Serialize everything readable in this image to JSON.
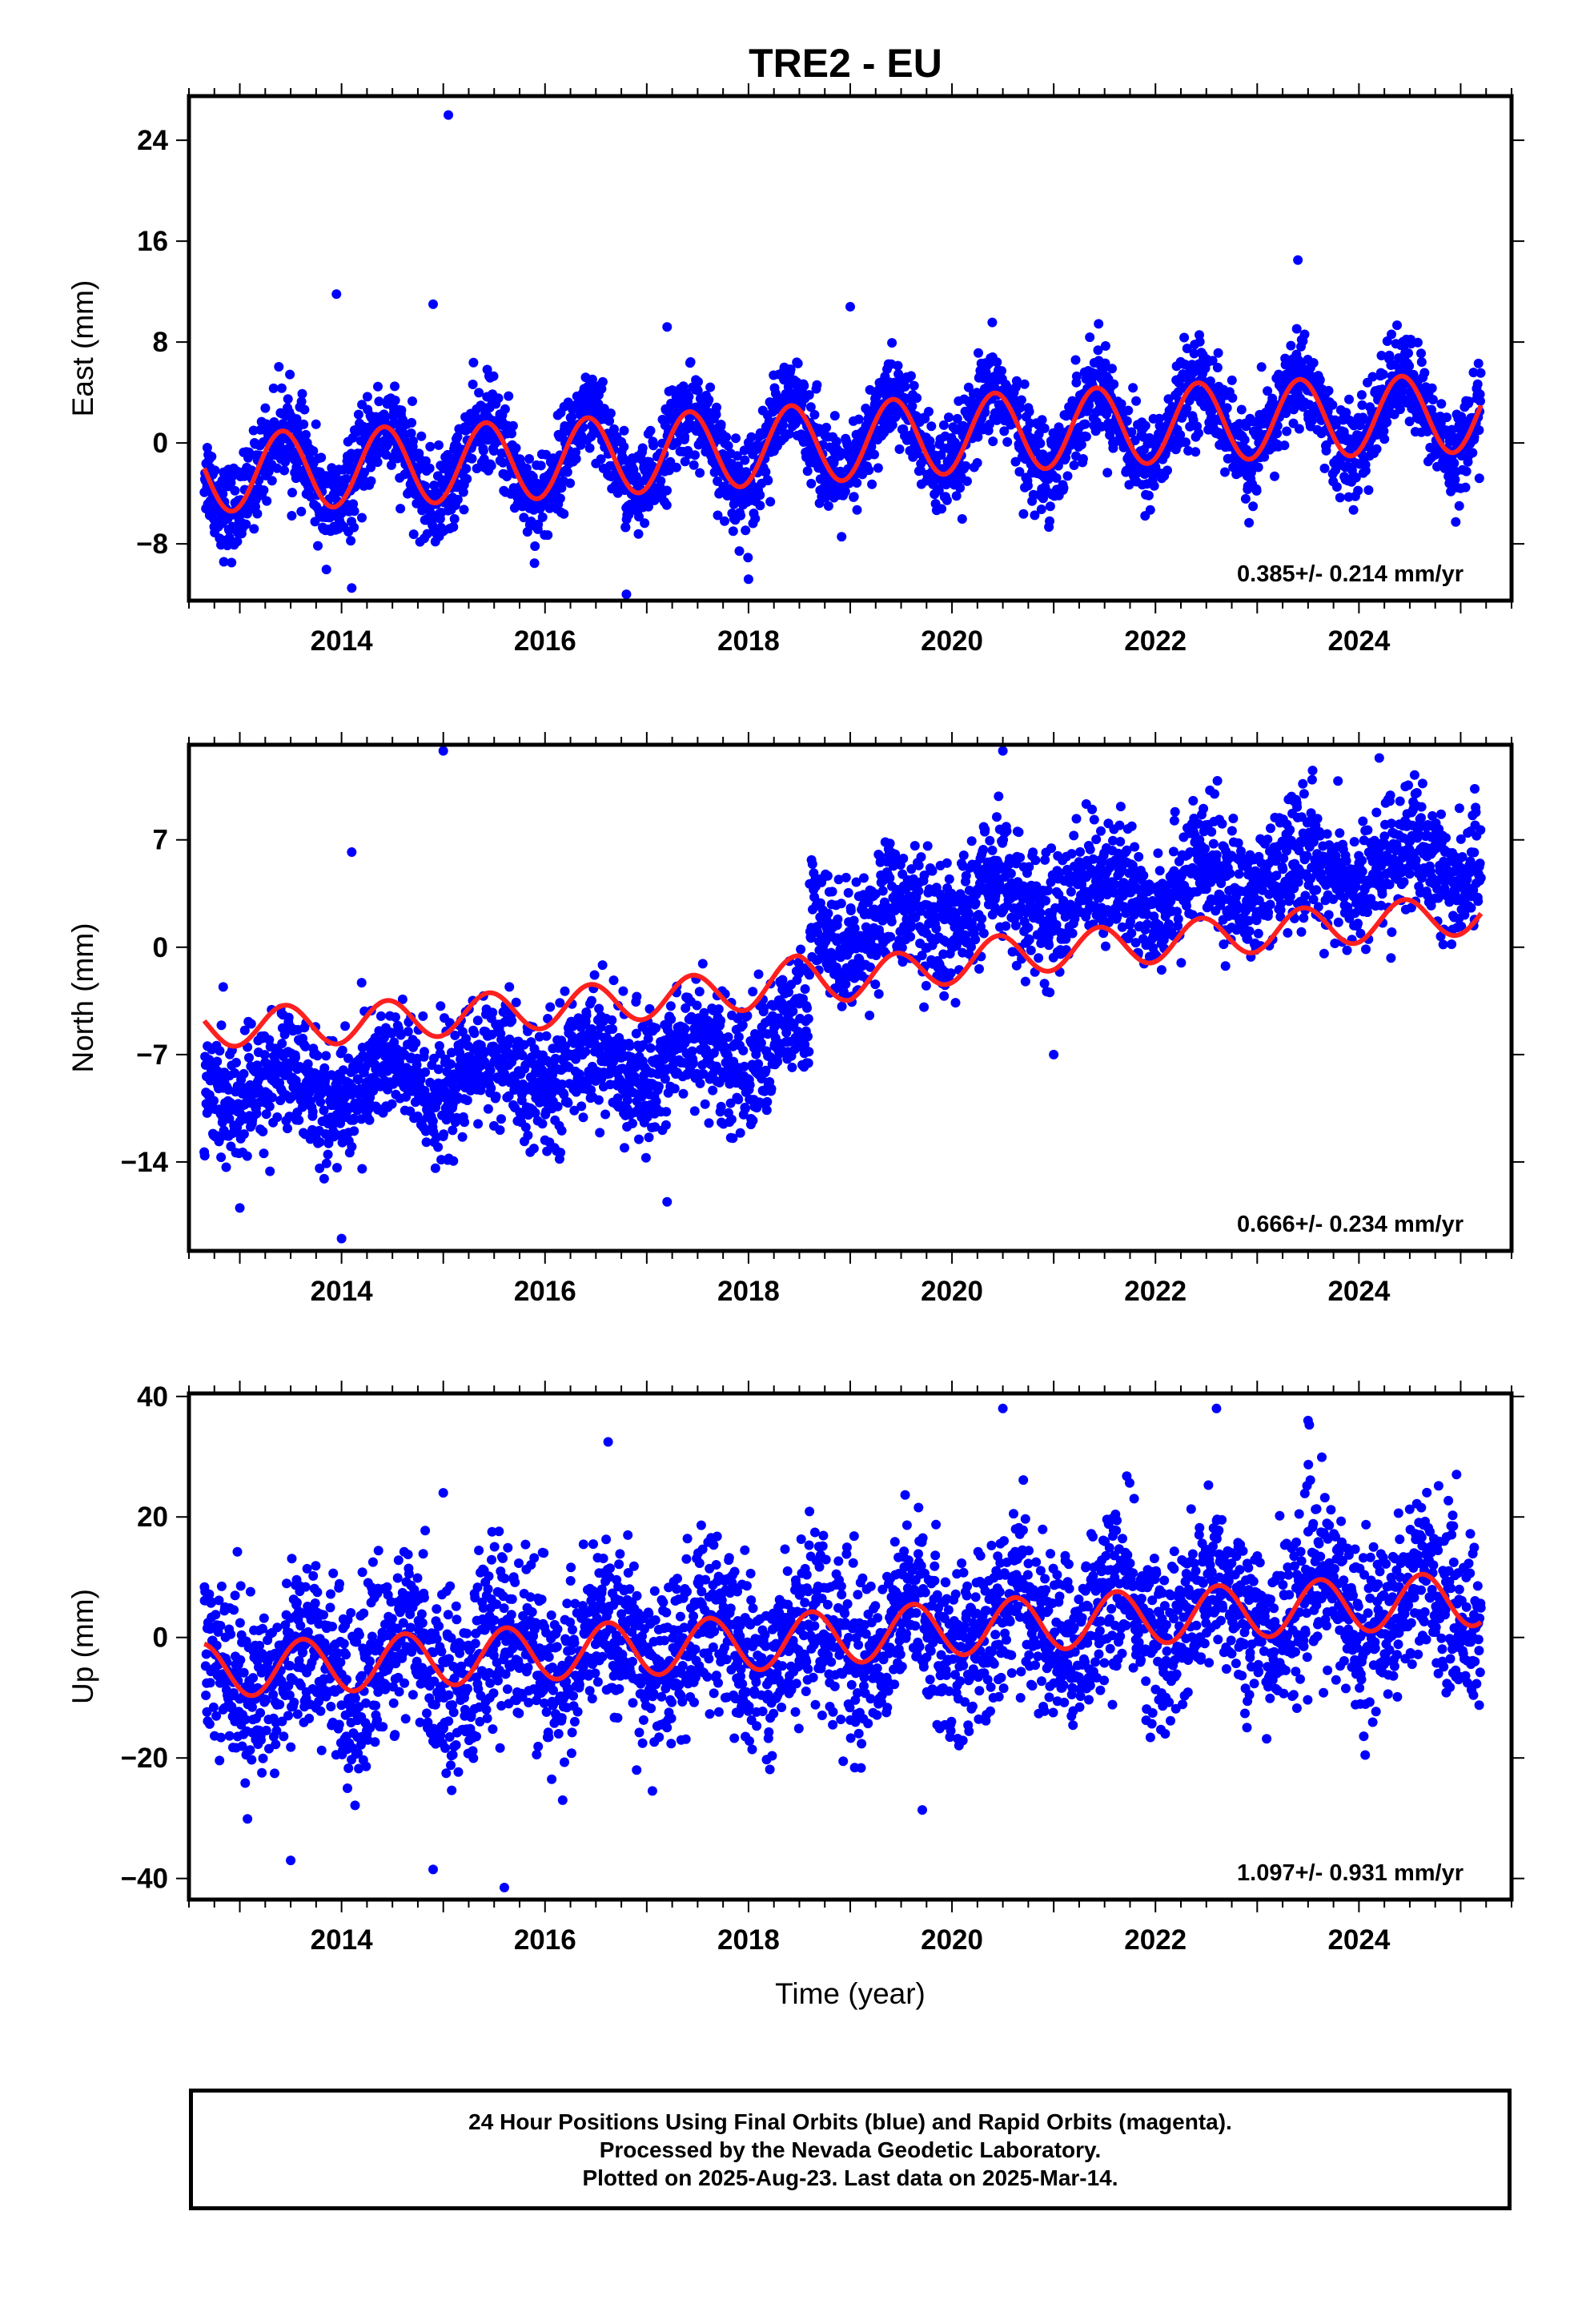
{
  "title": "TRE2 - EU",
  "colors": {
    "final_points": "#0000ff",
    "model_line": "#ff2020",
    "frame": "#000000"
  },
  "chart_data": [
    {
      "type": "scatter",
      "panel": "east",
      "ylabel": "East (mm)",
      "xlabel": "",
      "xlim": [
        2012.5,
        2025.5
      ],
      "ylim": [
        -12.5,
        27.5
      ],
      "yticks": [
        -8,
        0,
        8,
        16,
        24
      ],
      "xticks": [
        2014,
        2016,
        2018,
        2020,
        2022,
        2024
      ],
      "rate_text": "0.385+/- 0.214 mm/yr",
      "data_range": [
        2012.65,
        2025.2
      ],
      "model": {
        "trend": 0.385,
        "offset_at_2019": 0.0,
        "annual_amp": 3.1,
        "annual_peak": 0.42,
        "trend_curve": [
          [
            2012.65,
            -2.4
          ],
          [
            2016.0,
            -1.3
          ],
          [
            2018.5,
            -0.1
          ],
          [
            2020.5,
            0.9
          ],
          [
            2022.5,
            1.7
          ],
          [
            2025.2,
            2.4
          ]
        ]
      },
      "noise_sd": 1.8,
      "outliers": [
        [
          2015.05,
          26.0
        ],
        [
          2013.95,
          11.8
        ],
        [
          2014.9,
          11.0
        ],
        [
          2017.2,
          9.2
        ],
        [
          2019.0,
          10.8
        ],
        [
          2023.4,
          14.5
        ],
        [
          2014.1,
          -11.5
        ],
        [
          2016.8,
          -12.0
        ],
        [
          2018.0,
          -10.8
        ]
      ]
    },
    {
      "type": "scatter",
      "panel": "north",
      "ylabel": "North (mm)",
      "xlabel": "",
      "xlim": [
        2012.5,
        2025.5
      ],
      "ylim": [
        -19.8,
        13.2
      ],
      "yticks": [
        -14,
        -7,
        0,
        7
      ],
      "xticks": [
        2014,
        2016,
        2018,
        2020,
        2022,
        2024
      ],
      "rate_text": "0.666+/- 0.234 mm/yr",
      "data_range": [
        2012.65,
        2025.2
      ],
      "model": {
        "annual_amp": 1.3,
        "annual_peak": 0.45,
        "trend_curve": [
          [
            2012.65,
            -5.2
          ],
          [
            2014.0,
            -5.0
          ],
          [
            2016.0,
            -4.0
          ],
          [
            2018.0,
            -2.8
          ],
          [
            2018.5,
            -1.8
          ],
          [
            2019.0,
            -2.2
          ],
          [
            2020.5,
            -0.5
          ],
          [
            2022.0,
            0.3
          ],
          [
            2023.5,
            1.3
          ],
          [
            2025.2,
            2.2
          ]
        ]
      },
      "data_offset": {
        "before_2018.6": -4.0,
        "after_2018.6": 3.5
      },
      "noise_sd": 2.0,
      "outliers": [
        [
          2015.0,
          12.8
        ],
        [
          2014.1,
          6.2
        ],
        [
          2014.0,
          -19.0
        ],
        [
          2017.2,
          -16.6
        ],
        [
          2013.0,
          -17.0
        ],
        [
          2020.5,
          12.8
        ],
        [
          2021.0,
          -7.0
        ]
      ]
    },
    {
      "type": "scatter",
      "panel": "up",
      "ylabel": "Up (mm)",
      "xlabel": "Time (year)",
      "xlim": [
        2012.5,
        2025.5
      ],
      "ylim": [
        -43.5,
        40.5
      ],
      "yticks": [
        -40,
        -20,
        0,
        20,
        40
      ],
      "xticks": [
        2014,
        2016,
        2018,
        2020,
        2022,
        2024
      ],
      "rate_text": "1.097+/- 0.931 mm/yr",
      "data_range": [
        2012.65,
        2025.2
      ],
      "model": {
        "annual_amp": 4.5,
        "annual_peak": 0.62,
        "trend_curve": [
          [
            2012.65,
            -5.5
          ],
          [
            2014.0,
            -4.5
          ],
          [
            2016.0,
            -2.5
          ],
          [
            2018.0,
            -1.0
          ],
          [
            2020.0,
            1.5
          ],
          [
            2022.0,
            3.5
          ],
          [
            2023.5,
            5.0
          ],
          [
            2025.2,
            6.5
          ]
        ]
      },
      "noise_sd": 7.0,
      "outliers": [
        [
          2015.6,
          -41.5
        ],
        [
          2020.5,
          38.0
        ],
        [
          2022.6,
          38.0
        ],
        [
          2023.5,
          36.0
        ],
        [
          2015.0,
          24.0
        ],
        [
          2014.9,
          -38.5
        ],
        [
          2013.5,
          -37.0
        ]
      ]
    }
  ],
  "footer": {
    "line1": "24 Hour Positions Using Final Orbits (blue) and Rapid Orbits (magenta).",
    "line2": "Processed by the Nevada Geodetic Laboratory.",
    "line3": "Plotted on 2025-Aug-23. Last data on 2025-Mar-14."
  }
}
